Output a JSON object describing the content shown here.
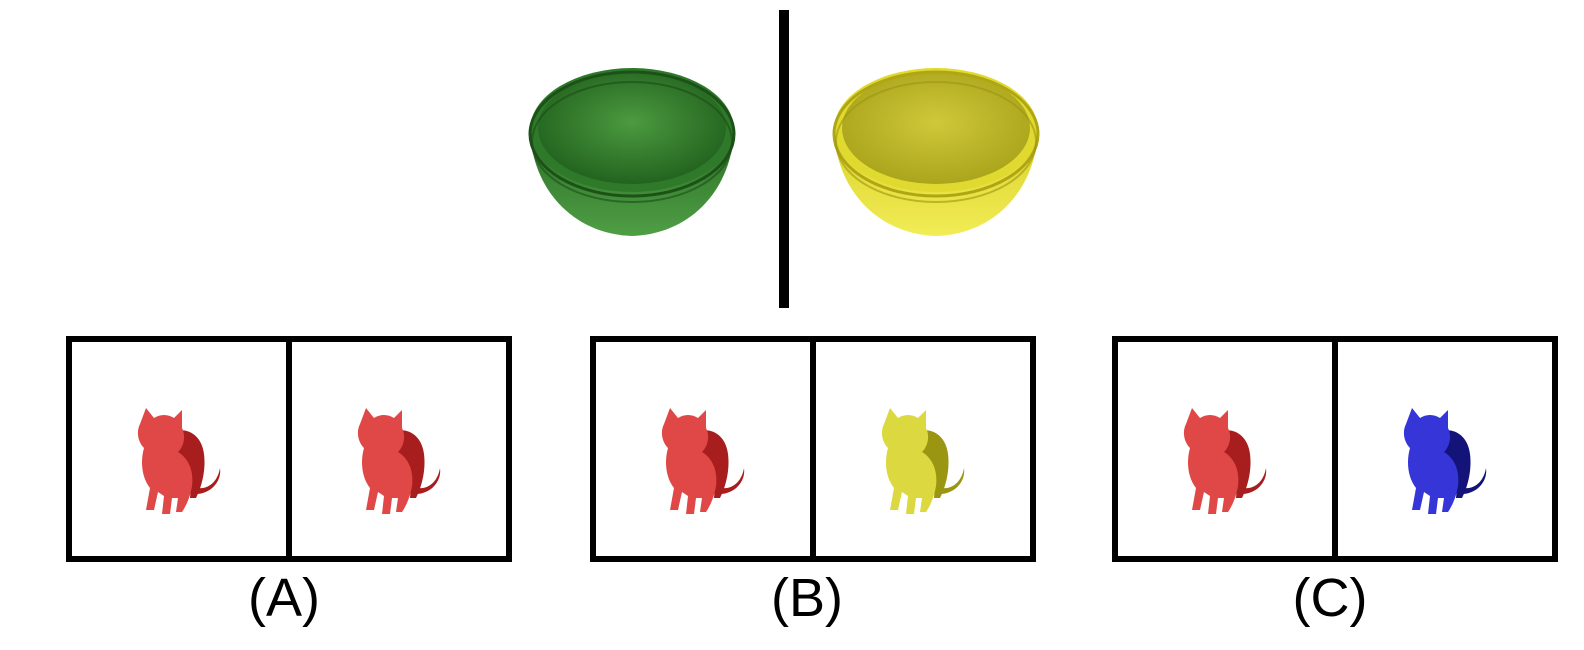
{
  "reference": {
    "left_bowl": {
      "icon": "bowl-icon",
      "color": "#2e7d2a"
    },
    "right_bowl": {
      "icon": "bowl-icon",
      "color": "#e6e02a"
    }
  },
  "options": [
    {
      "label": "(A)",
      "left_cat_color": "#e04848",
      "right_cat_color": "#e04848"
    },
    {
      "label": "(B)",
      "left_cat_color": "#e04848",
      "right_cat_color": "#dcd840"
    },
    {
      "label": "(C)",
      "left_cat_color": "#e04848",
      "right_cat_color": "#3535d8"
    }
  ],
  "palette": {
    "red": "#e04848",
    "red_shadow": "#a81e1e",
    "yellow": "#dcd840",
    "yellow_shadow": "#9a9612",
    "blue": "#3535d8",
    "blue_shadow": "#13137a",
    "green": "#2e7d2a",
    "green_light": "#4f9e45",
    "bowl_yellow": "#e6e02a",
    "bowl_yellow_light": "#f2ec56"
  }
}
